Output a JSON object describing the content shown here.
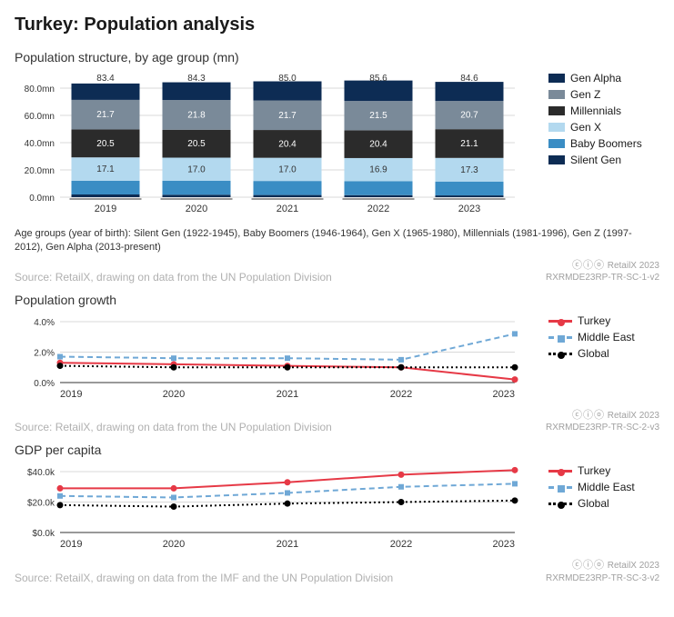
{
  "title": "Turkey: Population analysis",
  "chart1": {
    "type": "stacked-bar",
    "title": "Population structure, by age group (mn)",
    "categories": [
      "2019",
      "2020",
      "2021",
      "2022",
      "2023"
    ],
    "totals": [
      83.4,
      84.3,
      85.0,
      85.6,
      84.6
    ],
    "series": [
      {
        "name": "Silent Gen",
        "color": "#0d2c54",
        "values": [
          2.0,
          1.8,
          1.6,
          1.5,
          1.3
        ]
      },
      {
        "name": "Baby Boomers",
        "color": "#3a8dc4",
        "values": [
          10.1,
          10.2,
          10.3,
          10.3,
          10.2
        ]
      },
      {
        "name": "Gen X",
        "color": "#b3d9ef",
        "values": [
          17.1,
          17.0,
          17.0,
          16.9,
          17.3
        ],
        "showLabel": true
      },
      {
        "name": "Millennials",
        "color": "#2b2b2b",
        "values": [
          20.5,
          20.5,
          20.4,
          20.4,
          21.1
        ],
        "showLabel": true,
        "labelColor": "#ffffff"
      },
      {
        "name": "Gen Z",
        "color": "#7a8a99",
        "values": [
          21.7,
          21.8,
          21.7,
          21.5,
          20.7
        ],
        "showLabel": true,
        "labelColor": "#ffffff"
      },
      {
        "name": "Gen Alpha",
        "color": "#0d2c54",
        "values": [
          12.0,
          13.0,
          14.0,
          15.0,
          14.0
        ]
      }
    ],
    "legend_order": [
      "Gen Alpha",
      "Gen Z",
      "Millennials",
      "Gen X",
      "Baby Boomers",
      "Silent Gen"
    ],
    "yaxis": {
      "min": 0,
      "max": 80,
      "step": 20,
      "suffix": "mn",
      "format": "0.0"
    },
    "note": "Age groups (year of birth): Silent Gen (1922-1945), Baby Boomers (1946-1964), Gen X (1965-1980), Millennials (1981-1996), Gen Z (1997-2012), Gen Alpha (2013-present)",
    "source": "Source: RetailX, drawing on data from the UN Population Division",
    "attribution_brand": "RetailX 2023",
    "attribution_code": "RXRMDE23RP-TR-SC-1-v2"
  },
  "chart2": {
    "type": "line",
    "title": "Population growth",
    "categories": [
      "2019",
      "2020",
      "2021",
      "2022",
      "2023"
    ],
    "yaxis": {
      "min": 0,
      "max": 4,
      "step": 2,
      "suffix": "%",
      "format": "0.0"
    },
    "series": [
      {
        "name": "Turkey",
        "color": "#e63946",
        "style": "solid",
        "marker": "circle",
        "values": [
          1.3,
          1.2,
          1.1,
          1.0,
          0.2
        ]
      },
      {
        "name": "Middle East",
        "color": "#6fa8d6",
        "style": "dash",
        "marker": "square",
        "values": [
          1.7,
          1.6,
          1.6,
          1.5,
          3.2
        ]
      },
      {
        "name": "Global",
        "color": "#000000",
        "style": "dot",
        "marker": "circle",
        "values": [
          1.1,
          1.0,
          1.0,
          1.0,
          1.0
        ]
      }
    ],
    "source": "Source: RetailX, drawing on data from the UN Population Division",
    "attribution_brand": "RetailX 2023",
    "attribution_code": "RXRMDE23RP-TR-SC-2-v3"
  },
  "chart3": {
    "type": "line",
    "title": "GDP per capita",
    "categories": [
      "2019",
      "2020",
      "2021",
      "2022",
      "2023"
    ],
    "yaxis": {
      "min": 0,
      "max": 40,
      "step": 20,
      "prefix": "$",
      "suffix": "k",
      "format": "0.0"
    },
    "series": [
      {
        "name": "Turkey",
        "color": "#e63946",
        "style": "solid",
        "marker": "circle",
        "values": [
          29,
          29,
          33,
          38,
          41
        ]
      },
      {
        "name": "Middle East",
        "color": "#6fa8d6",
        "style": "dash",
        "marker": "square",
        "values": [
          24,
          23,
          26,
          30,
          32
        ]
      },
      {
        "name": "Global",
        "color": "#000000",
        "style": "dot",
        "marker": "circle",
        "values": [
          18,
          17,
          19,
          20,
          21
        ]
      }
    ],
    "source": "Source: RetailX, drawing on data from the IMF and the UN Population Division",
    "attribution_brand": "RetailX 2023",
    "attribution_code": "RXRMDE23RP-TR-SC-3-v2"
  },
  "cc_icons": "ⓒⓘⓞ"
}
